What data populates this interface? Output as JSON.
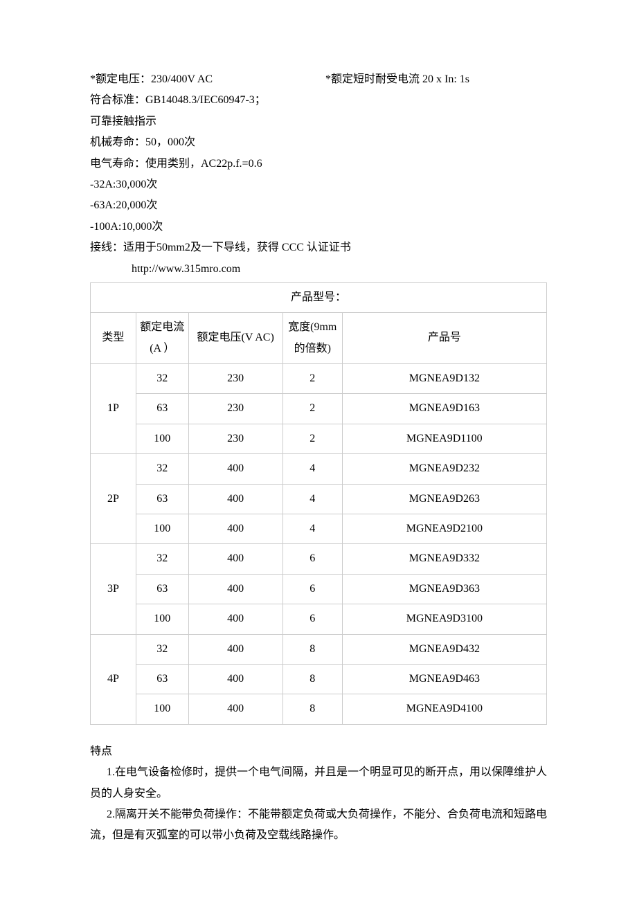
{
  "specs": {
    "voltage_label": "*额定电压：230/400V AC",
    "short_current_label": "*额定短时耐受电流  20 x In: 1s",
    "standard": "符合标准：GB14048.3/IEC60947-3；",
    "contact": "可靠接触指示",
    "mech_life": "机械寿命：50，000次",
    "elec_life": "电气寿命：使用类别，AC22p.f.=0.6",
    "life_32a": "-32A:30,000次",
    "life_63a": "-63A:20,000次",
    "life_100a": "-100A:10,000次",
    "wiring": "接线：适用于50mm2及一下导线，获得 CCC 认证证书",
    "url": "http://www.315mro.com"
  },
  "table": {
    "title": "产品型号：",
    "headers": {
      "type": "类型",
      "current": "额定电流(A ）",
      "voltage": "额定电压(V AC)",
      "width": "宽度(9mm 的倍数)",
      "product": "产品号"
    },
    "groups": [
      {
        "type": "1P",
        "rows": [
          {
            "current": "32",
            "voltage": "230",
            "width": "2",
            "product": "MGNEA9D132"
          },
          {
            "current": "63",
            "voltage": "230",
            "width": "2",
            "product": "MGNEA9D163"
          },
          {
            "current": "100",
            "voltage": "230",
            "width": "2",
            "product": "MGNEA9D1100"
          }
        ]
      },
      {
        "type": "2P",
        "rows": [
          {
            "current": "32",
            "voltage": "400",
            "width": "4",
            "product": "MGNEA9D232"
          },
          {
            "current": "63",
            "voltage": "400",
            "width": "4",
            "product": "MGNEA9D263"
          },
          {
            "current": "100",
            "voltage": "400",
            "width": "4",
            "product": "MGNEA9D2100"
          }
        ]
      },
      {
        "type": "3P",
        "rows": [
          {
            "current": "32",
            "voltage": "400",
            "width": "6",
            "product": "MGNEA9D332"
          },
          {
            "current": "63",
            "voltage": "400",
            "width": "6",
            "product": "MGNEA9D363"
          },
          {
            "current": "100",
            "voltage": "400",
            "width": "6",
            "product": "MGNEA9D3100"
          }
        ]
      },
      {
        "type": "4P",
        "rows": [
          {
            "current": "32",
            "voltage": "400",
            "width": "8",
            "product": "MGNEA9D432"
          },
          {
            "current": "63",
            "voltage": "400",
            "width": "8",
            "product": "MGNEA9D463"
          },
          {
            "current": "100",
            "voltage": "400",
            "width": "8",
            "product": "MGNEA9D4100"
          }
        ]
      }
    ]
  },
  "features": {
    "title": "特点",
    "p1": "1.在电气设备检修时，提供一个电气间隔，并且是一个明显可见的断开点，用以保障维护人员的人身安全。",
    "p2": "2.隔离开关不能带负荷操作：不能带额定负荷或大负荷操作，不能分、合负荷电流和短路电流，但是有灭弧室的可以带小负荷及空载线路操作。"
  }
}
